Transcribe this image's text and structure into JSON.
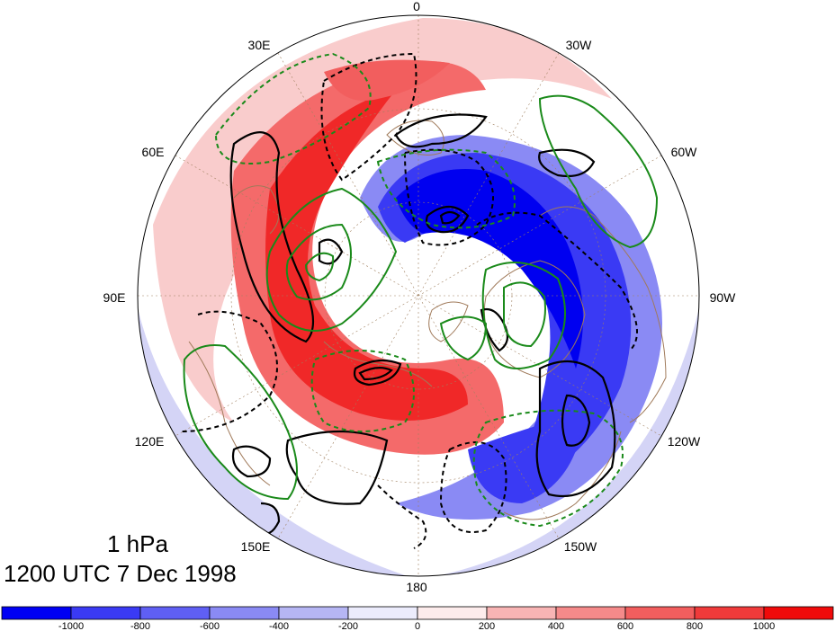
{
  "caption": {
    "level": "1 hPa",
    "time": "1200 UTC 7 Dec 1998"
  },
  "longitude_labels": [
    "0",
    "30W",
    "60W",
    "90W",
    "120W",
    "150W",
    "180",
    "150E",
    "120E",
    "90E",
    "60E",
    "30E"
  ],
  "colorbar": {
    "ticks": [
      "-1000",
      "-800",
      "-600",
      "-400",
      "-200",
      "0",
      "200",
      "400",
      "600",
      "800",
      "1000"
    ],
    "colors": [
      "#0000f4",
      "#3a3af4",
      "#5f5ff4",
      "#8a8af4",
      "#b6b6f4",
      "#ececfc",
      "#fdecec",
      "#f8b4b4",
      "#f58a8a",
      "#f25e5e",
      "#f03a3a",
      "#f00a0a"
    ]
  },
  "colors": {
    "positive_core": "#f02828",
    "negative_core": "#0000f0",
    "solid_contour": "#000000",
    "dashed_contour": "#000000",
    "green_contour": "#1a8a1a",
    "coastline": "#a07a5a",
    "graticule": "#a08060"
  }
}
